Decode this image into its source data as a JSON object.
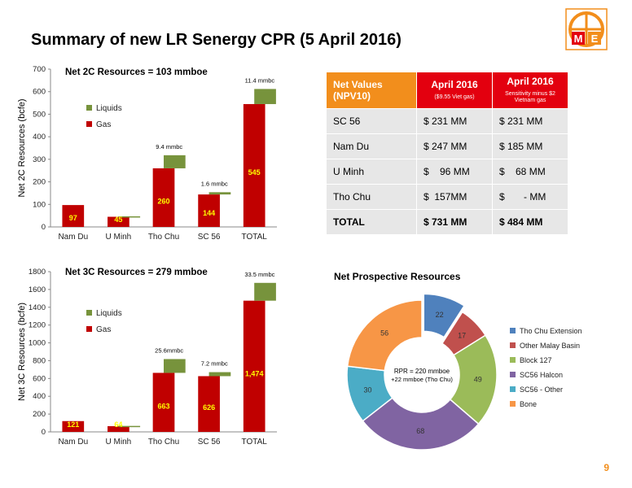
{
  "title": "Summary of new LR Senergy CPR (5 April 2016)",
  "page_number": "9",
  "logo": {
    "letters": [
      "M",
      "E"
    ],
    "colors": {
      "orange": "#f28e1c",
      "red": "#e3000f"
    }
  },
  "colors": {
    "liquids": "#77933c",
    "gas": "#c00000",
    "data_label": "#ffff00",
    "header_orange": "#f28e1c",
    "header_red": "#e3000f"
  },
  "npv_table": {
    "header": {
      "col0": "Net Values (NPV10)",
      "col1_title": "April 2016",
      "col1_sub": "($9.55 Viet gas)",
      "col2_title": "April 2016",
      "col2_sub": "Sensitivity minus $2 Vietnam gas"
    },
    "rows": [
      {
        "name": "SC 56",
        "v1": "$ 231 MM",
        "v2": "$ 231 MM"
      },
      {
        "name": "Nam Du",
        "v1": "$ 247 MM",
        "v2": "$ 185 MM"
      },
      {
        "name": "U Minh",
        "v1": "$    96 MM",
        "v2": "$    68 MM"
      },
      {
        "name": "Tho Chu",
        "v1": "$  157MM",
        "v2": "$       - MM"
      },
      {
        "name": "TOTAL",
        "v1": "$ 731 MM",
        "v2": "$ 484 MM"
      }
    ]
  },
  "chart_data": [
    {
      "type": "bar",
      "title": "Net 2C Resources = 103 mmboe",
      "ylabel": "Net 2C Resources (bcfe)",
      "ylim": [
        0,
        700
      ],
      "yticks": [
        0,
        100,
        200,
        300,
        400,
        500,
        600,
        700
      ],
      "categories": [
        "Nam Du",
        "U Minh",
        "Tho Chu",
        "SC 56",
        "TOTAL"
      ],
      "legend": [
        "Liquids",
        "Gas"
      ],
      "series": [
        {
          "name": "Gas",
          "base": [
            0,
            0,
            0,
            0,
            0
          ],
          "values": [
            97,
            45,
            260,
            144,
            545
          ]
        },
        {
          "name": "Liquids",
          "base": [
            97,
            45,
            260,
            144,
            545
          ],
          "values": [
            0,
            2,
            58,
            10,
            67
          ]
        }
      ],
      "data_labels": [
        "97",
        "45",
        "260",
        "144",
        "545"
      ],
      "annotations": [
        "",
        "",
        "9.4 mmbc",
        "1.6 mmbc",
        "11.4 mmbc"
      ]
    },
    {
      "type": "bar",
      "title": "Net 3C Resources = 279 mmboe",
      "ylabel": "Net 3C Resources (bcfe)",
      "ylim": [
        0,
        1800
      ],
      "yticks": [
        0,
        200,
        400,
        600,
        800,
        1000,
        1200,
        1400,
        1600,
        1800
      ],
      "categories": [
        "Nam Du",
        "U Minh",
        "Tho Chu",
        "SC 56",
        "TOTAL"
      ],
      "legend": [
        "Liquids",
        "Gas"
      ],
      "series": [
        {
          "name": "Gas",
          "base": [
            0,
            0,
            0,
            0,
            0
          ],
          "values": [
            121,
            64,
            663,
            626,
            1474
          ]
        },
        {
          "name": "Liquids",
          "base": [
            121,
            64,
            663,
            626,
            1474
          ],
          "values": [
            0,
            3,
            155,
            45,
            200
          ]
        }
      ],
      "data_labels": [
        "121",
        "64",
        "663",
        "626",
        "1,474"
      ],
      "annotations": [
        "",
        "",
        "25.6mmbc",
        "7.2 mmbc",
        "33.5 mmbc"
      ]
    },
    {
      "type": "pie",
      "title": "Net Prospective Resources",
      "center_text": [
        "RPR = 220 mmboe",
        "+22 mmboe (Tho Chu)"
      ],
      "slices": [
        {
          "name": "Tho Chu Extension",
          "value": 22,
          "color": "#4f81bd"
        },
        {
          "name": "Other Malay Basin",
          "value": 17,
          "color": "#c0504d"
        },
        {
          "name": "Block 127",
          "value": 49,
          "color": "#9bbb59"
        },
        {
          "name": "SC56 Halcon",
          "value": 68,
          "color": "#8064a2"
        },
        {
          "name": "SC56 - Other",
          "value": 30,
          "color": "#4bacc6"
        },
        {
          "name": "Bone",
          "value": 56,
          "color": "#f79646"
        }
      ]
    }
  ]
}
